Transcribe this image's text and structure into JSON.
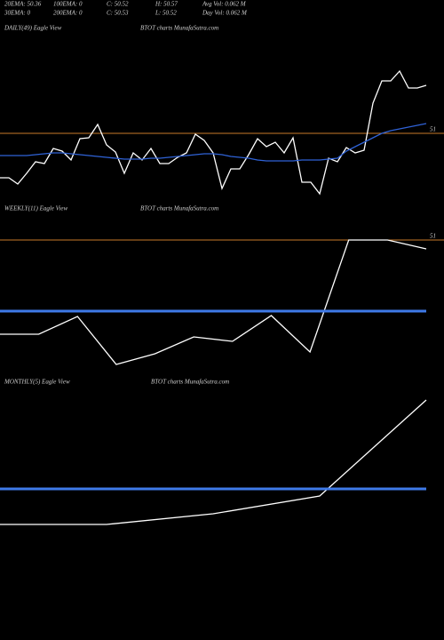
{
  "header": {
    "row1": [
      "20EMA: 50.36",
      "100EMA: 0",
      "C: 50.52",
      "H: 50.57",
      "Avg Vol: 0.062  M"
    ],
    "row2": [
      "30EMA: 0",
      "200EMA: 0",
      "C: 50.53",
      "L: 50.52",
      "Day Vol: 0.062  M"
    ]
  },
  "chart_data": [
    {
      "type": "line",
      "title": "DAILY(49) Eagle  View",
      "subtitle": "BTOT charts MunafaSutra.com",
      "categories": [
        null,
        null,
        null,
        null,
        null,
        null,
        null,
        null,
        null,
        null,
        null,
        null,
        null,
        null,
        null,
        null,
        null,
        null,
        null,
        null,
        null,
        null,
        null,
        null,
        null,
        null,
        null,
        null,
        null,
        null,
        null,
        null,
        null,
        null,
        null,
        null,
        null,
        null,
        null,
        null,
        null,
        null,
        null,
        null,
        null,
        null,
        null,
        null,
        null
      ],
      "series": [
        {
          "color": "#ffffff",
          "values": [
            50.5,
            50.5,
            50.43,
            50.55,
            50.68,
            50.66,
            50.83,
            50.8,
            50.7,
            50.94,
            50.95,
            51.1,
            50.87,
            50.79,
            50.55,
            50.78,
            50.7,
            50.83,
            50.66,
            50.66,
            50.73,
            50.78,
            50.99,
            50.92,
            50.78,
            50.38,
            50.6,
            50.6,
            50.76,
            50.94,
            50.85,
            50.9,
            50.78,
            50.95,
            50.45,
            50.45,
            50.32,
            50.72,
            50.68,
            50.84,
            50.78,
            50.81,
            51.34,
            51.59,
            51.59,
            51.7,
            51.51,
            51.51,
            51.54
          ]
        },
        {
          "color": "#2f62d6",
          "values": [
            50.75,
            50.75,
            50.75,
            50.75,
            50.76,
            50.77,
            50.78,
            50.78,
            50.77,
            50.76,
            50.75,
            50.74,
            50.73,
            50.72,
            50.71,
            50.71,
            50.71,
            50.72,
            50.72,
            50.73,
            50.74,
            50.75,
            50.76,
            50.77,
            50.77,
            50.76,
            50.74,
            50.73,
            50.72,
            50.7,
            50.69,
            50.69,
            50.69,
            50.69,
            50.7,
            50.7,
            50.7,
            50.71,
            50.72,
            50.8,
            50.85,
            50.9,
            50.95,
            51,
            51.03,
            51.05,
            51.07,
            51.09,
            51.11
          ]
        }
      ],
      "ylim": [
        50.2,
        52.5
      ],
      "yticks": [
        51
      ],
      "grid_color": "#c87a2a"
    },
    {
      "type": "line",
      "title": "WEEKLY(11) Eagle  View",
      "subtitle": "BTOT charts MunafaSutra.com",
      "categories": [
        null,
        null,
        null,
        null,
        null,
        null,
        null,
        null,
        null,
        null,
        null,
        null
      ],
      "series": [
        {
          "color": "#ffffff",
          "values": [
            49.94,
            49.94,
            50.14,
            49.6,
            49.72,
            49.91,
            49.86,
            50.15,
            49.74,
            51,
            51,
            50.9
          ]
        },
        {
          "color": "#3f7ae8",
          "width": 3,
          "values": [
            50.2,
            50.2,
            50.2,
            50.2,
            50.2,
            50.2,
            50.2,
            50.2,
            50.2,
            50.2,
            50.2,
            50.2
          ]
        }
      ],
      "ylim": [
        49.45,
        51.4
      ],
      "yticks": [
        51
      ],
      "grid_color": "#c87a2a"
    },
    {
      "type": "line",
      "title": "MONTHLY(5) Eagle  View",
      "subtitle": "BTOT charts MunafaSutra.com",
      "categories": [
        null,
        null,
        null,
        null,
        null
      ],
      "series": [
        {
          "color": "#ffffff",
          "values": [
            50.85,
            50.85,
            50.97,
            51.17,
            52.25
          ]
        },
        {
          "color": "#3f7ae8",
          "width": 3,
          "values": [
            51.25,
            51.25,
            51.25,
            51.25,
            51.25
          ]
        }
      ],
      "ylim": [
        49.55,
        52.5
      ],
      "yticks": []
    }
  ]
}
